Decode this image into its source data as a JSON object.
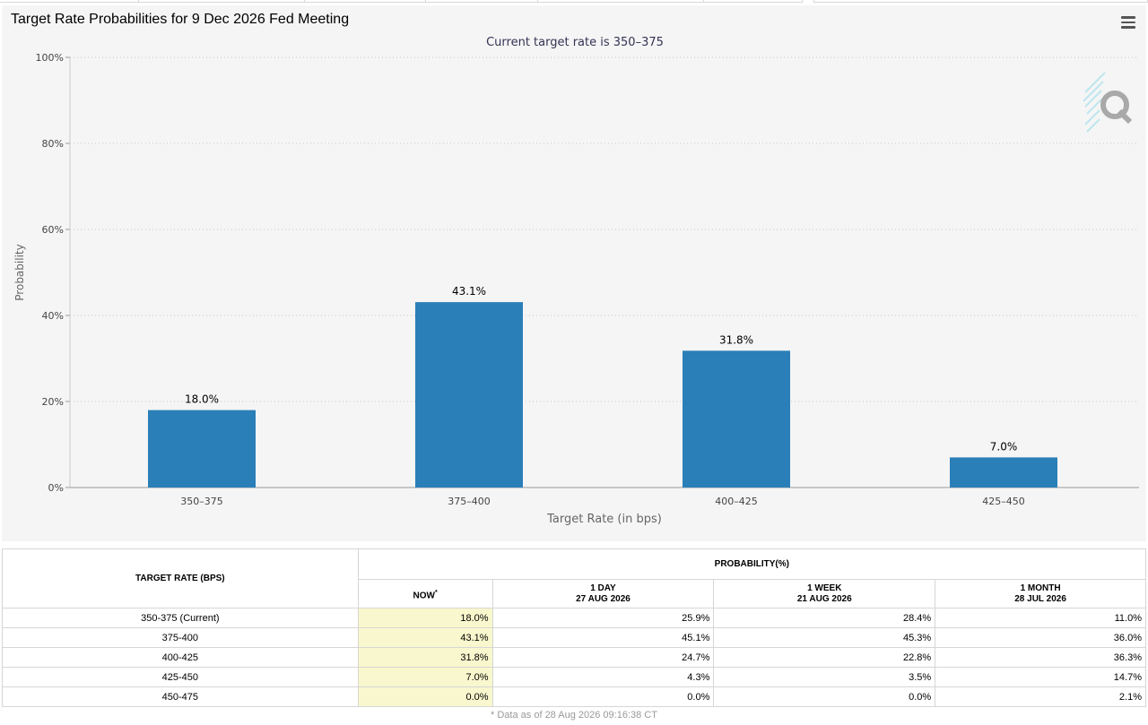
{
  "top_tabs": [
    "",
    "",
    "",
    "",
    "",
    "",
    ""
  ],
  "chart": {
    "title": "Target Rate Probabilities for 9 Dec 2026 Fed Meeting",
    "menu_icon": "hamburger-menu-icon",
    "logo_icon": "quikstrike-q-logo-icon",
    "bar_color": "#2a7fb8",
    "y_ticks": [
      "0%",
      "20%",
      "40%",
      "60%",
      "80%",
      "100%"
    ]
  },
  "chart_data": {
    "type": "bar",
    "title": "Target Rate Probabilities for 9 Dec 2026 Fed Meeting",
    "subtitle": "Current target rate is 350–375",
    "xlabel": "Target Rate (in bps)",
    "ylabel": "Probability",
    "categories": [
      "350–375",
      "375–400",
      "400–425",
      "425–450"
    ],
    "values": [
      18.0,
      43.1,
      31.8,
      7.0
    ],
    "data_labels": [
      "18.0%",
      "43.1%",
      "31.8%",
      "7.0%"
    ],
    "ylim": [
      0,
      100
    ],
    "grid": true,
    "legend": "none"
  },
  "table": {
    "header_rate": "TARGET RATE (BPS)",
    "header_prob": "PROBABILITY(%)",
    "col_now": "NOW",
    "col_now_mark": "*",
    "cols": [
      {
        "label": "1 DAY",
        "date": "27 AUG 2026"
      },
      {
        "label": "1 WEEK",
        "date": "21 AUG 2026"
      },
      {
        "label": "1 MONTH",
        "date": "28 JUL 2026"
      }
    ],
    "rows": [
      {
        "rate": "350-375 (Current)",
        "now": "18.0%",
        "day": "25.9%",
        "week": "28.4%",
        "month": "11.0%"
      },
      {
        "rate": "375-400",
        "now": "43.1%",
        "day": "45.1%",
        "week": "45.3%",
        "month": "36.0%"
      },
      {
        "rate": "400-425",
        "now": "31.8%",
        "day": "24.7%",
        "week": "22.8%",
        "month": "36.3%"
      },
      {
        "rate": "425-450",
        "now": "7.0%",
        "day": "4.3%",
        "week": "3.5%",
        "month": "14.7%"
      },
      {
        "rate": "450-475",
        "now": "0.0%",
        "day": "0.0%",
        "week": "0.0%",
        "month": "2.1%"
      }
    ],
    "now_highlight": "#f8f7cd",
    "footnote": "* Data as of 28 Aug 2026 09:16:38 CT"
  }
}
